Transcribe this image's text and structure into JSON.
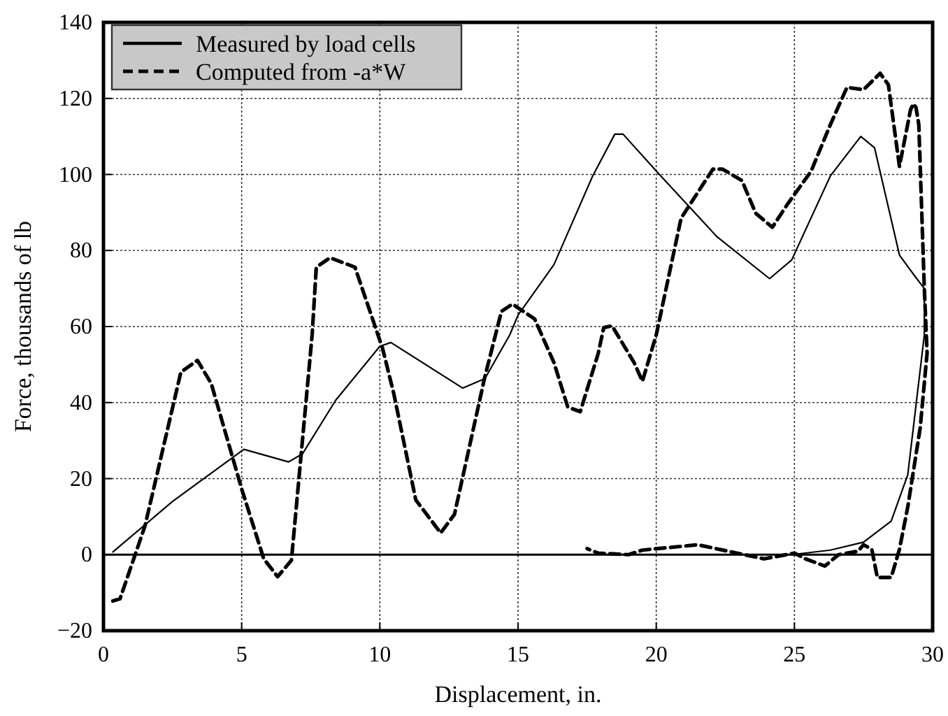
{
  "chart_data": {
    "type": "line",
    "xlabel": "Displacement, in.",
    "ylabel": "Force, thousands of lb",
    "xlim": [
      0,
      30
    ],
    "ylim": [
      -20,
      140
    ],
    "xticks": [
      0,
      5,
      10,
      15,
      20,
      25,
      30
    ],
    "yticks": [
      -20,
      0,
      20,
      40,
      60,
      80,
      100,
      120,
      140
    ],
    "grid": true,
    "legend": "top left",
    "ref_lines": [
      {
        "axis": "y",
        "value": 0,
        "color": "#000000",
        "line_style": "solid"
      }
    ],
    "series": [
      {
        "name": "Measured by load cells",
        "color": "#000000",
        "line_style": "solid",
        "x": [
          0.34,
          2.5,
          5.08,
          6.7,
          7.2,
          8.4,
          10.0,
          10.4,
          13.0,
          13.8,
          14.7,
          15.0,
          16.3,
          17.7,
          18.5,
          18.8,
          20.0,
          22.2,
          24.1,
          24.9,
          26.3,
          27.4,
          27.9,
          28.8,
          29.3,
          29.7,
          29.7,
          29.1,
          28.5,
          27.5,
          26.3,
          24.9
        ],
        "values": [
          0.7,
          14,
          27.7,
          24.4,
          26.5,
          40.6,
          54.8,
          55.8,
          43.8,
          46.3,
          57.8,
          63,
          76.3,
          99.6,
          110.6,
          110.6,
          100.9,
          83.6,
          72.6,
          77.5,
          99.6,
          110,
          107,
          78.8,
          73.8,
          70,
          57.8,
          21,
          8.8,
          3.3,
          1.2,
          0
        ]
      },
      {
        "name": "Computed from -a*W",
        "color": "#000000",
        "line_style": "dashed",
        "x": [
          0.34,
          0.6,
          1.5,
          2.8,
          3.4,
          3.9,
          5.0,
          5.8,
          6.3,
          6.8,
          7.55,
          7.7,
          8.2,
          9.1,
          10.1,
          10.5,
          11.3,
          12.2,
          12.7,
          13.8,
          14.4,
          14.8,
          15.6,
          16.3,
          16.8,
          17.25,
          17.9,
          18.1,
          18.4,
          19.2,
          19.5,
          20.0,
          20.9,
          22.05,
          22.4,
          23.1,
          23.6,
          24.2,
          24.75,
          25.6,
          26.3,
          26.9,
          27.5,
          28.1,
          28.4,
          28.8,
          29.2,
          29.3,
          29.4,
          29.5,
          29.7,
          29.8,
          29.55,
          29.1,
          28.8,
          28.5,
          28.0,
          27.8,
          27.5,
          27.3,
          26.6,
          26.1,
          25.4,
          25.0,
          23.9,
          21.5,
          19.5,
          19.0,
          17.9,
          17.5
        ],
        "values": [
          -12.2,
          -11.6,
          7.5,
          48,
          51.1,
          45,
          17.3,
          -1.1,
          -5.8,
          -1.5,
          57.8,
          75.6,
          78.1,
          75.6,
          54.2,
          42.5,
          14.4,
          5.7,
          10.6,
          46.8,
          64,
          65.9,
          62,
          50.5,
          38.8,
          37.6,
          52.9,
          59.7,
          60.2,
          50.5,
          45.6,
          57.8,
          88.5,
          101.4,
          101.4,
          98.4,
          89.8,
          86.1,
          92.2,
          100.8,
          113.1,
          122.9,
          122.3,
          126.6,
          123.6,
          102.1,
          117,
          118.6,
          117.6,
          113.1,
          70,
          53,
          33.3,
          12.5,
          1.4,
          -6,
          -6,
          1.4,
          2.6,
          0.9,
          0,
          -3,
          -1.1,
          0.4,
          -1.1,
          2.6,
          1.2,
          0,
          0.4,
          1.6
        ]
      }
    ]
  }
}
